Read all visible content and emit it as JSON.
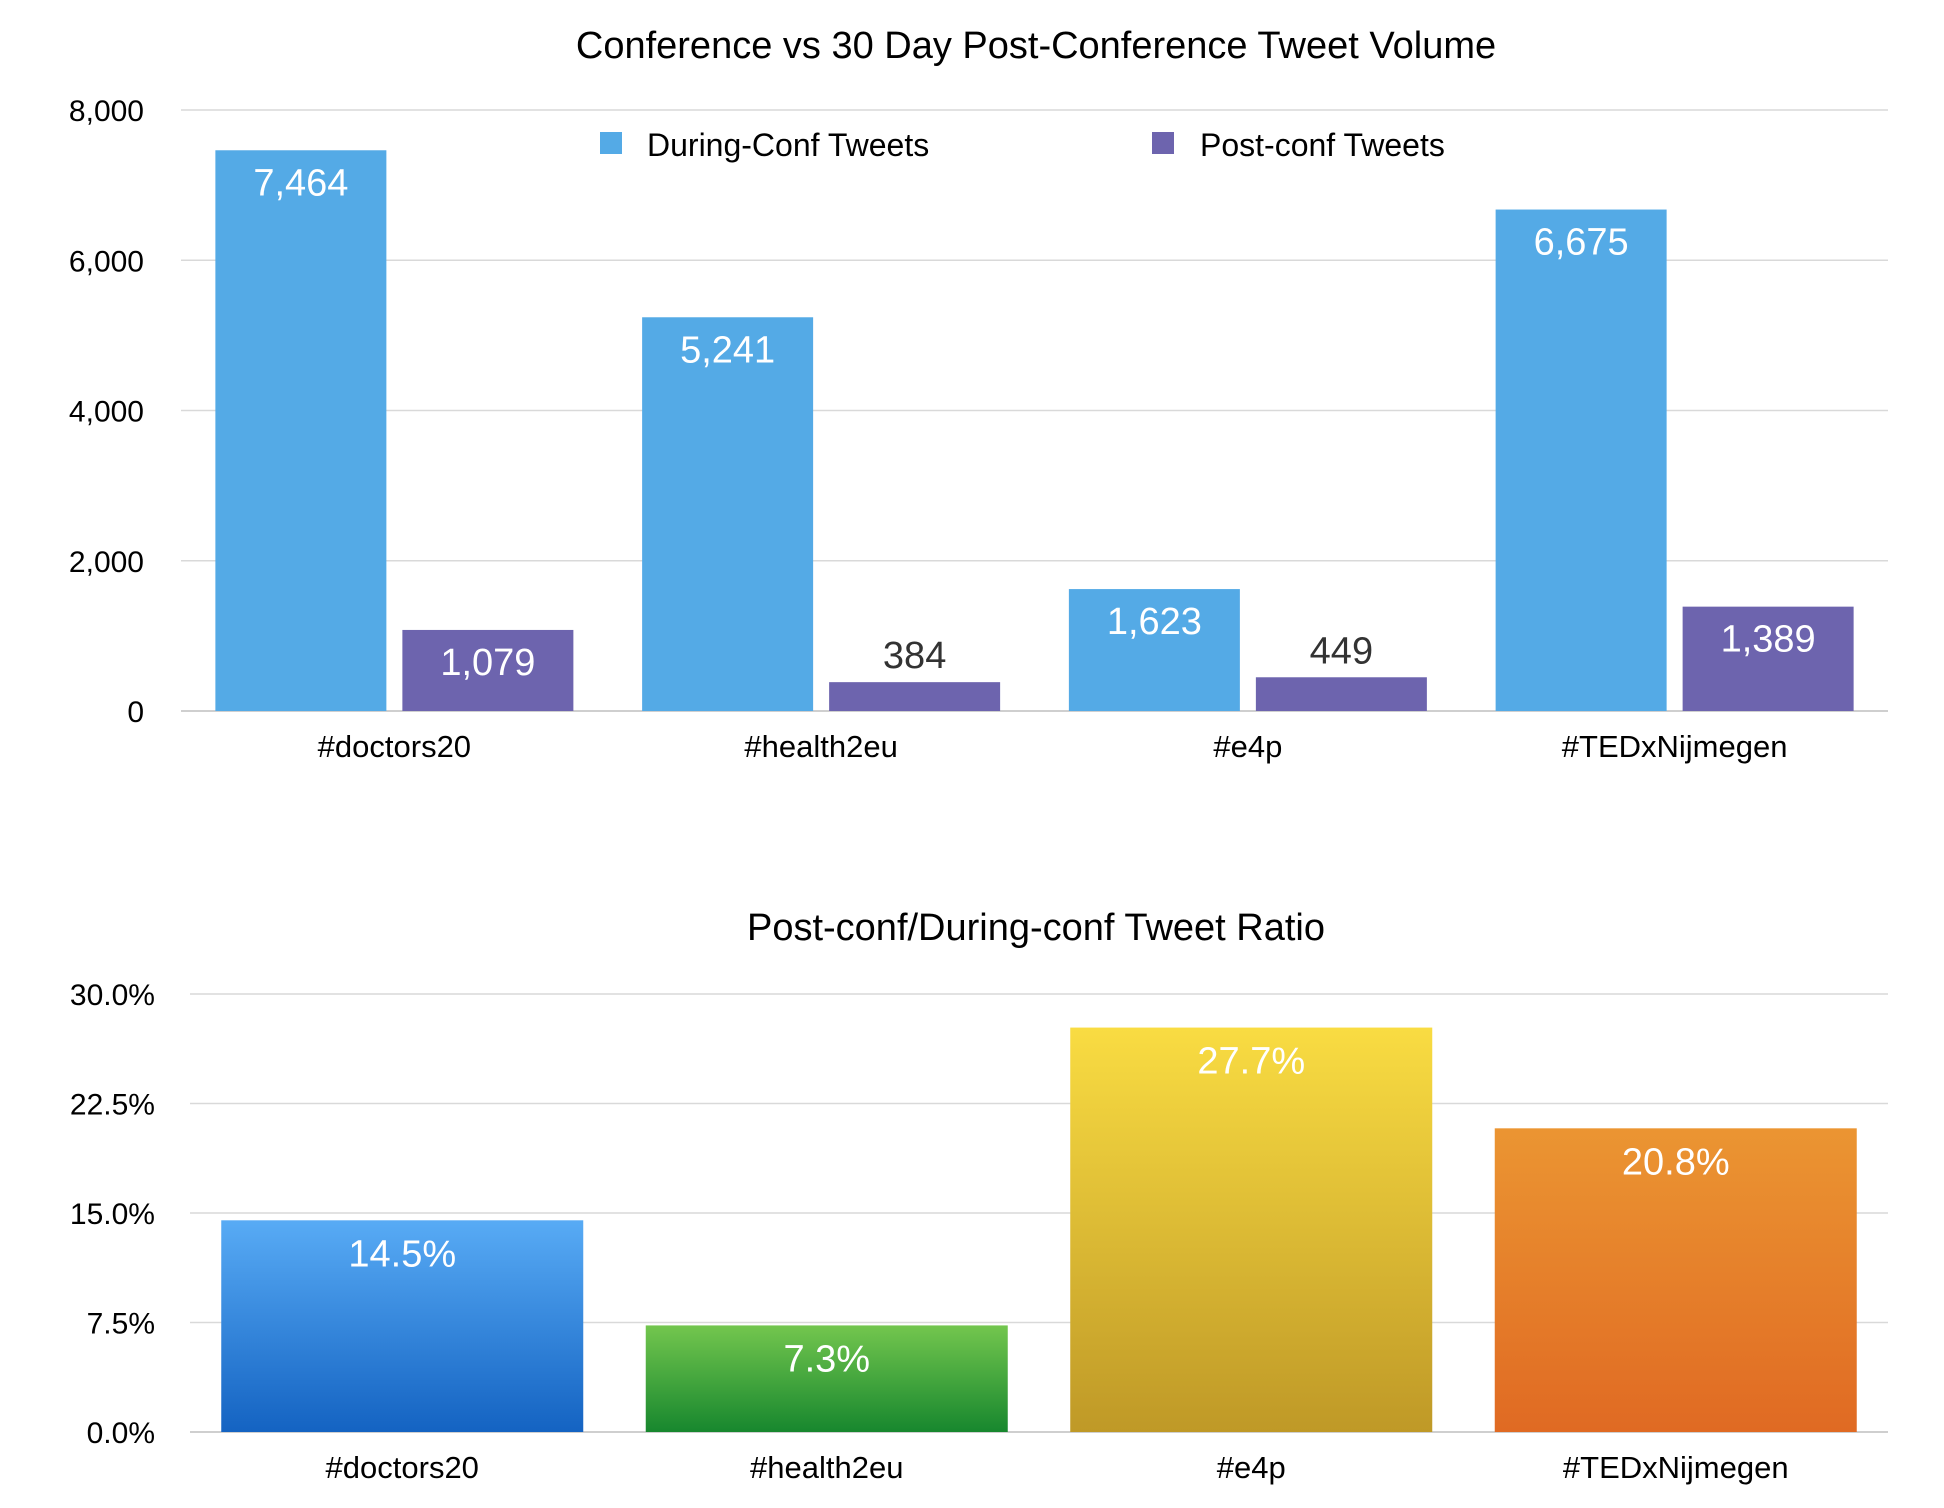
{
  "chart_data": [
    {
      "type": "bar",
      "title": "Conference vs 30 Day Post-Conference Tweet Volume",
      "categories": [
        "#doctors20",
        "#health2eu",
        "#e4p",
        "#TEDxNijmegen"
      ],
      "series": [
        {
          "name": "During-Conf Tweets",
          "values": [
            7464,
            5241,
            1623,
            6675
          ],
          "labels": [
            "7,464",
            "5,241",
            "1,623",
            "6,675"
          ],
          "color": "#54aae6"
        },
        {
          "name": "Post-conf Tweets",
          "values": [
            1079,
            384,
            449,
            1389
          ],
          "labels": [
            "1,079",
            "384",
            "449",
            "1,389"
          ],
          "color": "#6d64ae"
        }
      ],
      "ylim": [
        0,
        8000
      ],
      "yticks": [
        "0",
        "2,000",
        "4,000",
        "6,000",
        "8,000"
      ],
      "grid": true,
      "legend": "top-center"
    },
    {
      "type": "bar",
      "title": "Post-conf/During-conf Tweet Ratio",
      "categories": [
        "#doctors20",
        "#health2eu",
        "#e4p",
        "#TEDxNijmegen"
      ],
      "values": [
        14.5,
        7.3,
        27.7,
        20.8
      ],
      "labels": [
        "14.5%",
        "7.3%",
        "27.7%",
        "20.8%"
      ],
      "colors": [
        [
          "#58abf5",
          "#1463c2"
        ],
        [
          "#73c64e",
          "#17872e"
        ],
        [
          "#f9dc42",
          "#bf9927"
        ],
        [
          "#eb9532",
          "#e06a23"
        ]
      ],
      "ylim": [
        0,
        30
      ],
      "yticks": [
        "0.0%",
        "7.5%",
        "15.0%",
        "22.5%",
        "30.0%"
      ],
      "grid": true
    }
  ]
}
